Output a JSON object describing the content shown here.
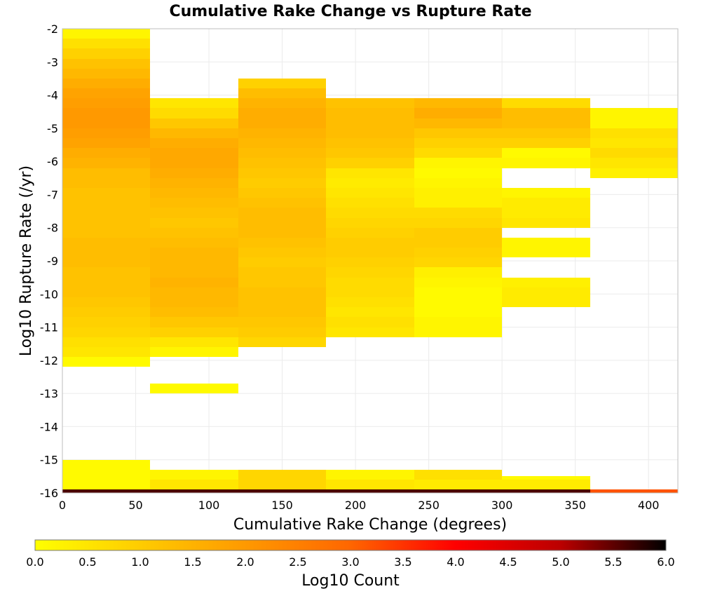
{
  "chart_data": {
    "type": "heatmap",
    "title": "Cumulative Rake Change vs Rupture Rate",
    "xlabel": "Cumulative Rake Change (degrees)",
    "ylabel": "Log10 Rupture Rate (/yr)",
    "xlim": [
      0,
      420
    ],
    "ylim": [
      -16,
      -2
    ],
    "xticks": [
      0,
      50,
      100,
      150,
      200,
      250,
      300,
      350,
      400
    ],
    "yticks": [
      -2,
      -3,
      -4,
      -5,
      -6,
      -7,
      -8,
      -9,
      -10,
      -11,
      -12,
      -13,
      -14,
      -15,
      -16
    ],
    "grid": true,
    "x_bin_width": 60,
    "y_bin_height": 0.3,
    "colorbar": {
      "label": "Log10 Count",
      "min": 0.0,
      "max": 6.0,
      "ticks": [
        "0.0",
        "0.5",
        "1.0",
        "1.5",
        "2.0",
        "2.5",
        "3.0",
        "3.5",
        "4.0",
        "4.5",
        "5.0",
        "5.5",
        "6.0"
      ],
      "colors": [
        "#ffff00",
        "#ffcc00",
        "#ff9900",
        "#ff6600",
        "#ff0000",
        "#bb0000",
        "#000000"
      ]
    },
    "columns": [
      {
        "x_start": 0,
        "y_start": -12.2,
        "values": [
          0.1,
          0.5,
          0.6,
          0.8,
          0.9,
          1.0,
          1.1,
          1.2,
          1.2,
          1.2,
          1.3,
          1.3,
          1.3,
          1.2,
          1.2,
          1.2,
          1.2,
          1.2,
          1.3,
          1.3,
          1.5,
          1.6,
          1.8,
          1.9,
          2.0,
          2.0,
          1.9,
          1.8,
          1.6,
          1.4,
          1.2,
          0.9,
          0.6,
          0.2
        ]
      },
      {
        "x_start": 60,
        "y_start": -11.9,
        "values": [
          0.2,
          0.5,
          0.9,
          1.1,
          1.3,
          1.4,
          1.4,
          1.5,
          1.4,
          1.4,
          1.4,
          1.3,
          1.2,
          1.1,
          1.2,
          1.3,
          1.4,
          1.5,
          1.6,
          1.7,
          1.7,
          1.6,
          1.4,
          1.1,
          0.7,
          0.5
        ]
      },
      {
        "x_start": 120,
        "y_start": -11.6,
        "values": [
          0.8,
          1.0,
          1.1,
          1.2,
          1.2,
          1.2,
          1.1,
          1.1,
          1.0,
          1.1,
          1.2,
          1.3,
          1.3,
          1.3,
          1.2,
          1.1,
          1.0,
          1.1,
          1.2,
          1.3,
          1.4,
          1.5,
          1.6,
          1.6,
          1.5,
          1.3,
          0.9
        ]
      },
      {
        "x_start": 180,
        "y_start": -11.3,
        "values": [
          0.5,
          0.6,
          0.5,
          0.6,
          0.7,
          0.7,
          0.8,
          0.9,
          1.0,
          1.0,
          0.9,
          0.8,
          0.7,
          0.6,
          0.5,
          0.4,
          0.5,
          0.9,
          1.1,
          1.2,
          1.3,
          1.3,
          1.3,
          1.2
        ]
      },
      {
        "x_start": 240,
        "y_start": -11.3,
        "values": [
          0.2,
          0.2,
          0.1,
          0.1,
          0.1,
          0.2,
          0.3,
          0.8,
          0.9,
          1.0,
          1.0,
          0.8,
          0.7,
          0.3,
          0.3,
          0.2,
          0.1,
          0.2,
          0.7,
          0.9,
          1.1,
          1.4,
          1.6,
          1.4
        ]
      },
      {
        "x_start": 300,
        "y_start": -10.4,
        "values": [
          0.4,
          0.4,
          0.3,
          null,
          null,
          0.2,
          0.2,
          null,
          0.5,
          0.4,
          0.4,
          0.2,
          null,
          null,
          0.2,
          0.1,
          0.9,
          1.1,
          1.3,
          1.3,
          0.7
        ]
      },
      {
        "x_start": 360,
        "y_start": -6.5,
        "values": [
          0.3,
          0.5,
          0.7,
          0.5,
          0.6,
          0.2,
          0.2
        ]
      }
    ],
    "low_tail_cells": [
      {
        "x_start": 60,
        "y_bottom": -13.0,
        "y_top": -12.7,
        "value": 0.1
      },
      {
        "x_start": 0,
        "y_bottom": -15.9,
        "y_top": -15.0,
        "value": 0.1
      },
      {
        "x_start": 60,
        "y_bottom": -15.9,
        "y_top": -15.6,
        "value": 0.5
      },
      {
        "x_start": 60,
        "y_bottom": -15.6,
        "y_top": -15.3,
        "value": 0.2
      },
      {
        "x_start": 120,
        "y_bottom": -15.9,
        "y_top": -15.3,
        "value": 0.8
      },
      {
        "x_start": 180,
        "y_bottom": -15.9,
        "y_top": -15.6,
        "value": 0.5
      },
      {
        "x_start": 180,
        "y_bottom": -15.6,
        "y_top": -15.3,
        "value": 0.2
      },
      {
        "x_start": 240,
        "y_bottom": -15.9,
        "y_top": -15.6,
        "value": 0.4
      },
      {
        "x_start": 240,
        "y_bottom": -15.6,
        "y_top": -15.3,
        "value": 0.6
      },
      {
        "x_start": 300,
        "y_bottom": -15.9,
        "y_top": -15.6,
        "value": 0.4
      },
      {
        "x_start": 300,
        "y_bottom": -15.6,
        "y_top": -15.5,
        "value": 0.1
      },
      {
        "x_start": 0,
        "y_bottom": -16.0,
        "y_top": -15.9,
        "value": 5.6,
        "width": 360
      },
      {
        "x_start": 360,
        "y_bottom": -16.0,
        "y_top": -15.9,
        "value": 3.2,
        "width": 60
      }
    ]
  }
}
